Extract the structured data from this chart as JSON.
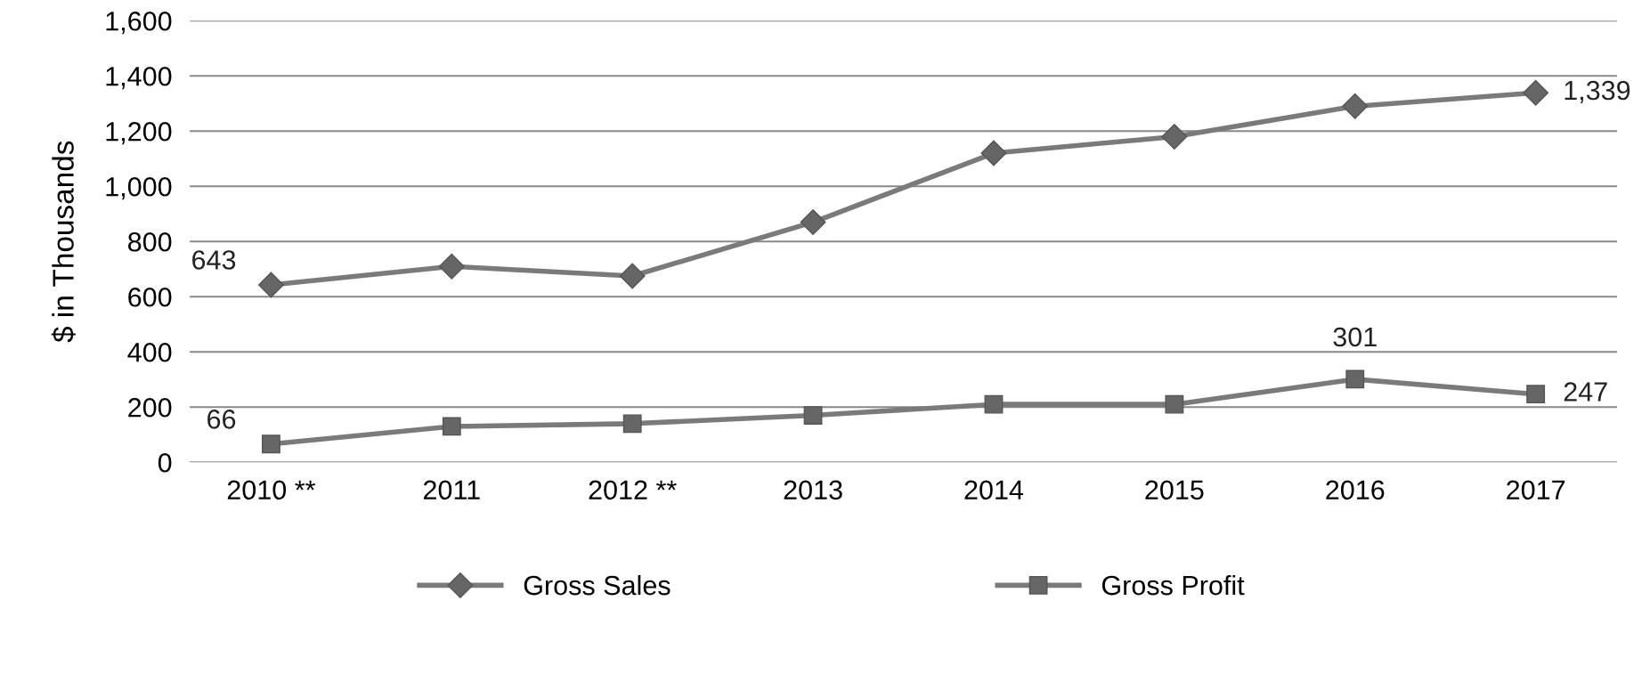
{
  "chart_data": {
    "type": "line",
    "ylabel": "$ in Thousands",
    "categories": [
      "2010 **",
      "2011",
      "2012 **",
      "2013",
      "2014",
      "2015",
      "2016",
      "2017"
    ],
    "series": [
      {
        "name": "Gross Sales",
        "color": "#7a7a7a",
        "marker": "diamond",
        "values": [
          643,
          710,
          675,
          870,
          1120,
          1180,
          1290,
          1339
        ],
        "value_labels": [
          "643",
          null,
          null,
          null,
          null,
          null,
          null,
          "1,339"
        ]
      },
      {
        "name": "Gross Profit",
        "color": "#7a7a7a",
        "marker": "square",
        "values": [
          66,
          130,
          140,
          170,
          210,
          210,
          301,
          247
        ],
        "value_labels": [
          "66",
          null,
          null,
          null,
          null,
          null,
          "301",
          "247"
        ]
      }
    ],
    "ylim": [
      0,
      1600
    ],
    "yticks": [
      0,
      200,
      400,
      600,
      800,
      {
        "value": 1000,
        "label": "1,000"
      },
      {
        "value": 1200,
        "label": "1,200"
      },
      {
        "value": 1400,
        "label": "1,400"
      },
      {
        "value": 1600,
        "label": "1,600"
      }
    ],
    "grid": "y",
    "legend": "bottom",
    "line_style": "solid"
  }
}
